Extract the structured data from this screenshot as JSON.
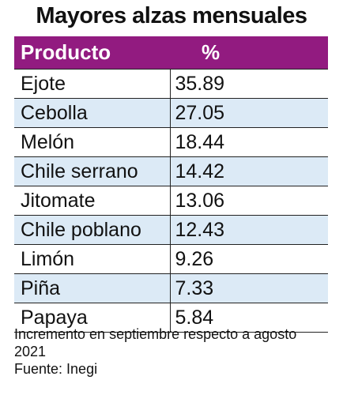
{
  "header": {
    "title": "Mayores alzas mensuales"
  },
  "table": {
    "columns": [
      "Producto",
      "%"
    ],
    "rows": [
      [
        "Ejote",
        "35.89"
      ],
      [
        "Cebolla",
        "27.05"
      ],
      [
        "Melón",
        "18.44"
      ],
      [
        "Chile serrano",
        "14.42"
      ],
      [
        "Jitomate",
        "13.06"
      ],
      [
        "Chile poblano",
        "12.43"
      ],
      [
        "Limón",
        "9.26"
      ],
      [
        "Piña",
        "7.33"
      ],
      [
        "Papaya",
        "5.84"
      ]
    ]
  },
  "footer": {
    "note": "Incremento en septiembre respecto a agosto 2021",
    "source": "Fuente: Inegi"
  }
}
